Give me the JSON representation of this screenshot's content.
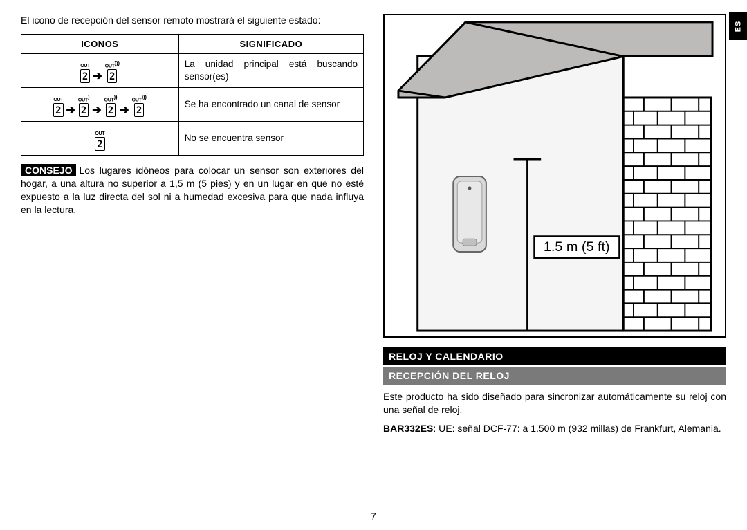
{
  "lang_tab": "ES",
  "left": {
    "intro": "El icono de recepción del sensor remoto mostrará el siguiente estado:",
    "table": {
      "header_icons": "ICONOS",
      "header_meaning": "SIGNIFICADO",
      "rows": [
        {
          "icons": [
            {
              "label": "OUT",
              "waves": 0
            },
            {
              "label": "OUT",
              "waves": 3
            }
          ],
          "meaning": "La unidad principal está buscando sensor(es)"
        },
        {
          "icons": [
            {
              "label": "OUT",
              "waves": 0
            },
            {
              "label": "OUT",
              "waves": 1
            },
            {
              "label": "OUT",
              "waves": 2
            },
            {
              "label": "OUT",
              "waves": 3
            }
          ],
          "meaning": "Se ha encontrado un canal de sensor"
        },
        {
          "icons": [
            {
              "label": "OUT",
              "waves": 0
            }
          ],
          "meaning": "No se encuentra sensor"
        }
      ]
    },
    "consejo_label": "CONSEJO",
    "consejo_text": "Los lugares idóneos para colocar un sensor son exteriores del hogar, a una altura no superior a 1,5 m (5 pies) y en un lugar en que no esté expuesto a la luz directa del sol ni a humedad excesiva para que nada influya en la lectura."
  },
  "right": {
    "figure": {
      "dimension_label": "1.5 m (5 ft)",
      "colors": {
        "outline": "#000000",
        "roof_fill": "#bdbaba",
        "wall_fill": "#f5f5f5",
        "brick_fill": "#ffffff",
        "sensor_fill": "#d9d9d9",
        "sensor_stroke": "#666666"
      }
    },
    "section1": "RELOJ Y CALENDARIO",
    "section2": "RECEPCIÓN DEL RELOJ",
    "para1": "Este producto ha sido diseñado para sincronizar automáticamente su reloj con una señal de reloj.",
    "model": "BAR332ES",
    "para2": ": UE: señal DCF-77: a 1.500 m (932 millas) de Frankfurt, Alemania."
  },
  "page_number": "7",
  "styles": {
    "bg": "#ffffff",
    "text": "#000000",
    "gray_bar": "#7a7a7a",
    "black_bar": "#000000",
    "font_size_body": 14,
    "font_size_small": 13
  }
}
